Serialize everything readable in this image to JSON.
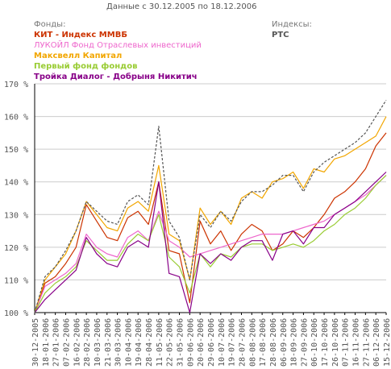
{
  "header": {
    "title": "Данные с 30.12.2005 по 18.12.2006",
    "funds_heading": "Фонды:",
    "indices_heading": "Индексы:",
    "index_name": "РТС"
  },
  "colors": {
    "text": "#555555",
    "axis": "#000000",
    "grid": "#cccccc",
    "rts": "#555555"
  },
  "chart_data": {
    "type": "line",
    "title": "Данные с 30.12.2005 по 18.12.2006",
    "xlabel": "",
    "ylabel": "",
    "ylim": [
      100,
      170
    ],
    "yticks": [
      100,
      110,
      120,
      130,
      140,
      150,
      160,
      170
    ],
    "ytick_labels": [
      "100 %",
      "110 %",
      "120 %",
      "130 %",
      "140 %",
      "150 %",
      "160 %",
      "170 %"
    ],
    "x_tick_labels": [
      "30-12-2005",
      "18-01-2006",
      "27-01-2006",
      "07-02-2006",
      "16-02-2006",
      "28-02-2006",
      "10-03-2006",
      "21-03-2006",
      "30-03-2006",
      "10-04-2006",
      "19-04-2006",
      "28-04-2006",
      "11-05-2006",
      "22-05-2006",
      "31-05-2006",
      "09-06-2006",
      "20-06-2006",
      "29-06-2006",
      "10-07-2006",
      "19-07-2006",
      "28-07-2006",
      "08-08-2006",
      "17-08-2006",
      "28-08-2006",
      "06-09-2006",
      "18-09-2006",
      "27-09-2006",
      "06-10-2006",
      "17-10-2006",
      "26-10-2006",
      "07-11-2006",
      "16-11-2006",
      "27-11-2006",
      "06-12-2006",
      "15-12-2006"
    ],
    "grid": true,
    "legend": "top-left",
    "series": [
      {
        "name": "КИТ - Индекс ММВБ",
        "color": "#cc3300",
        "style": "solid",
        "values": [
          100,
          109,
          111,
          115,
          120,
          133,
          128,
          123,
          122,
          129,
          131,
          127,
          140,
          119,
          118,
          103,
          128,
          121,
          125,
          119,
          124,
          127,
          125,
          119,
          121,
          125,
          123,
          126,
          130,
          135,
          137,
          140,
          144,
          151,
          155
        ]
      },
      {
        "name": "ЛУКОЙЛ Фонд Отраслевых инвестиций",
        "color": "#ee66cc",
        "style": "solid",
        "values": [
          100,
          108,
          110,
          112,
          115,
          124,
          120,
          118,
          117,
          123,
          125,
          122,
          131,
          122,
          120,
          117,
          118,
          119,
          120,
          121,
          122,
          123,
          124,
          124,
          124,
          125,
          126,
          127,
          128,
          130,
          132,
          134,
          136,
          139,
          142
        ]
      },
      {
        "name": "Максвелл Капитал",
        "color": "#f2a600",
        "style": "solid",
        "values": [
          100,
          110,
          114,
          118,
          125,
          134,
          130,
          126,
          125,
          132,
          134,
          131,
          145,
          124,
          122,
          110,
          132,
          127,
          131,
          127,
          135,
          137,
          135,
          140,
          141,
          143,
          138,
          144,
          143,
          147,
          148,
          150,
          152,
          154,
          160
        ]
      },
      {
        "name": "Первый фонд фондов",
        "color": "#99cc33",
        "style": "solid",
        "values": [
          100,
          106,
          109,
          111,
          114,
          122,
          119,
          116,
          116,
          121,
          124,
          122,
          130,
          117,
          114,
          106,
          118,
          114,
          118,
          117,
          120,
          121,
          121,
          119,
          120,
          121,
          120,
          122,
          125,
          127,
          130,
          132,
          135,
          139,
          142
        ]
      },
      {
        "name": "Тройка Диалог - Добрыня Никитич",
        "color": "#880088",
        "style": "solid",
        "values": [
          100,
          104,
          107,
          110,
          113,
          123,
          118,
          115,
          114,
          120,
          122,
          120,
          140,
          112,
          111,
          100,
          118,
          115,
          118,
          116,
          120,
          122,
          122,
          116,
          124,
          125,
          121,
          126,
          126,
          130,
          132,
          134,
          137,
          140,
          143
        ]
      },
      {
        "name": "РТС",
        "color": "#555555",
        "style": "dashed",
        "values": [
          100,
          111,
          114,
          119,
          125,
          134,
          131,
          128,
          127,
          134,
          136,
          133,
          157,
          128,
          123,
          110,
          130,
          126,
          131,
          128,
          134,
          137,
          137,
          139,
          142,
          142,
          137,
          143,
          146,
          148,
          150,
          152,
          155,
          160,
          165
        ]
      }
    ]
  }
}
